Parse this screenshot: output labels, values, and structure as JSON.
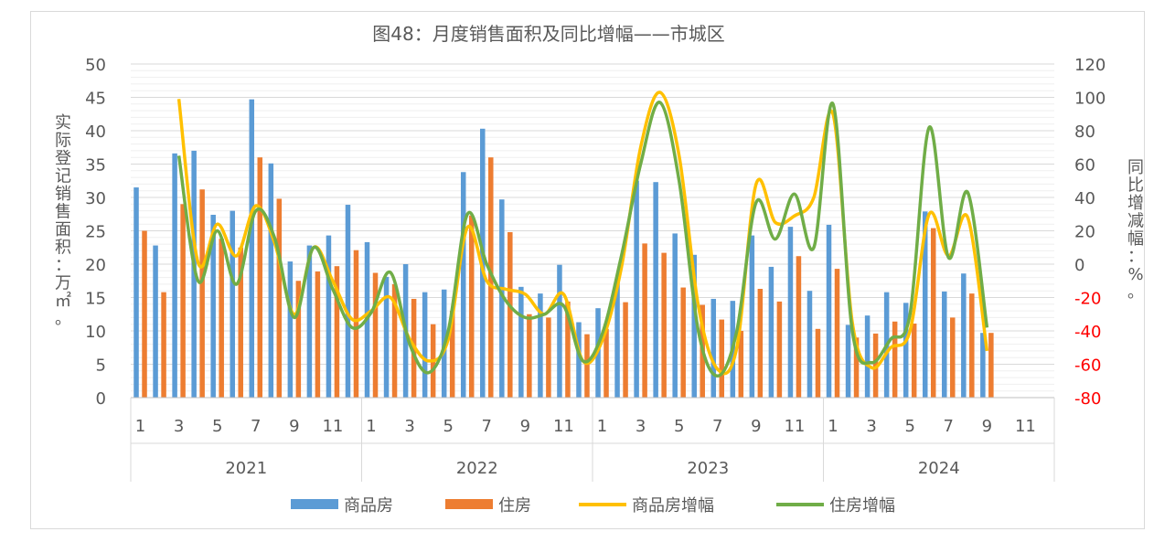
{
  "chart_data": {
    "type": "bar",
    "title": "图48：月度销售面积及同比增幅——市城区",
    "y_left_label": "实际登记销售面积：万㎡。",
    "y_right_label": "同比增减幅：%。",
    "y_left_ticks": [
      "50",
      "45",
      "40",
      "35",
      "30",
      "25",
      "20",
      "15",
      "10",
      "5",
      "0"
    ],
    "y_right_ticks": [
      "120",
      "100",
      "80",
      "60",
      "40",
      "20",
      "0",
      "-20",
      "-40",
      "-60",
      "-80"
    ],
    "ylim_left": [
      0,
      50
    ],
    "ylim_right": [
      -80,
      120
    ],
    "year_groups": [
      {
        "label": "2021",
        "months": 12
      },
      {
        "label": "2022",
        "months": 12
      },
      {
        "label": "2023",
        "months": 12
      },
      {
        "label": "2024",
        "months": 12
      }
    ],
    "month_tick_labels": [
      "1",
      "3",
      "5",
      "7",
      "9",
      "11"
    ],
    "bar_series": [
      {
        "name": "商品房",
        "color": "#5b9bd5",
        "values": [
          31.5,
          22.8,
          36.6,
          37.0,
          27.4,
          28.0,
          44.7,
          35.1,
          20.4,
          22.8,
          24.3,
          28.9,
          23.3,
          18.1,
          20.0,
          15.8,
          16.2,
          33.8,
          40.3,
          29.7,
          16.6,
          15.6,
          19.9,
          11.3,
          13.4,
          17.8,
          32.5,
          32.3,
          24.6,
          21.4,
          14.8,
          14.5,
          24.3,
          19.6,
          25.6,
          16.0,
          25.9,
          10.9,
          12.3,
          15.8,
          14.2,
          27.9,
          15.9,
          18.6,
          9.7,
          null,
          null,
          null
        ]
      },
      {
        "name": "住房",
        "color": "#ed7d31",
        "values": [
          25.0,
          15.8,
          29.0,
          31.2,
          23.8,
          22.5,
          36.0,
          29.8,
          17.5,
          18.9,
          19.7,
          22.1,
          18.7,
          17.0,
          14.8,
          11.0,
          13.0,
          27.3,
          36.0,
          24.8,
          12.5,
          12.0,
          14.4,
          9.5,
          10.3,
          14.3,
          23.1,
          21.7,
          16.5,
          13.9,
          11.7,
          10.0,
          16.3,
          14.4,
          21.2,
          10.3,
          19.3,
          9.0,
          9.6,
          11.4,
          11.1,
          25.4,
          12.0,
          15.6,
          9.7,
          null,
          null,
          null
        ]
      }
    ],
    "line_series": [
      {
        "name": "商品房增幅",
        "color": "#ffc000",
        "values": [
          null,
          null,
          99,
          1,
          24,
          5,
          35,
          12,
          -30,
          10,
          -10,
          -33,
          -28,
          -20,
          -45,
          -58,
          -45,
          22,
          -10,
          -15,
          -18,
          -30,
          -18,
          -58,
          -46,
          -2,
          70,
          103,
          65,
          -25,
          -63,
          -50,
          48,
          25,
          29,
          40,
          90,
          -35,
          -62,
          -50,
          -40,
          30,
          5,
          28,
          -52,
          null,
          null,
          null
        ]
      },
      {
        "name": "住房增幅",
        "color": "#70ad47",
        "values": [
          null,
          null,
          65,
          -10,
          20,
          -12,
          32,
          15,
          -32,
          10,
          -15,
          -38,
          -29,
          -5,
          -48,
          -65,
          -40,
          30,
          0,
          -22,
          -32,
          -30,
          -25,
          -58,
          -42,
          5,
          60,
          97,
          50,
          -40,
          -67,
          -40,
          37,
          15,
          42,
          10,
          96,
          -40,
          -59,
          -45,
          -30,
          82,
          4,
          43,
          -38,
          null,
          null,
          null
        ]
      }
    ],
    "legend_position": "bottom",
    "grid": "horizontal"
  }
}
